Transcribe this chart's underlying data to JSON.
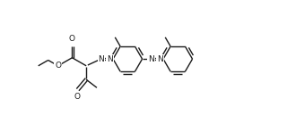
{
  "bg_color": "#ffffff",
  "line_color": "#1a1a1a",
  "line_width": 1.0,
  "font_size": 6.5,
  "figsize": [
    3.3,
    1.57
  ],
  "dpi": 100,
  "xlim": [
    0,
    10.5
  ],
  "ylim": [
    0,
    4.8
  ]
}
